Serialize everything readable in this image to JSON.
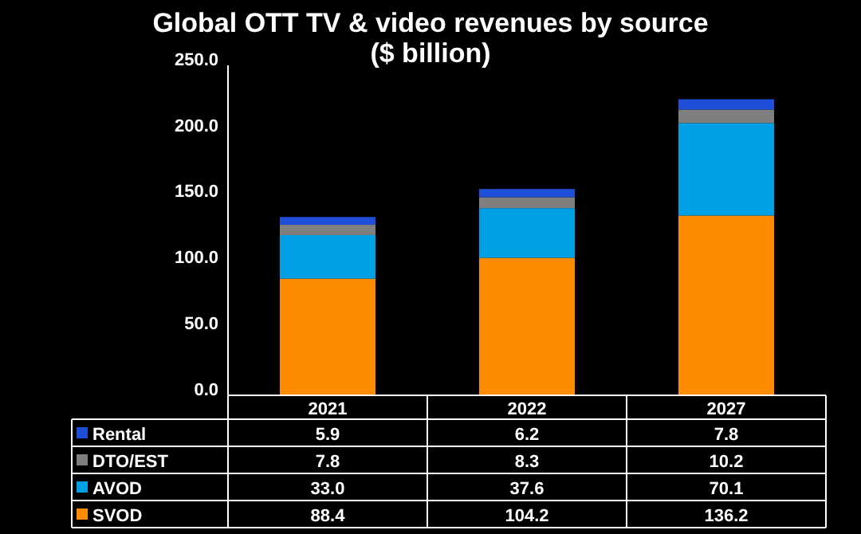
{
  "chart_data": {
    "type": "bar",
    "stacked": true,
    "title": "Global OTT TV & video revenues by source\n($ billion)",
    "categories": [
      "2021",
      "2022",
      "2027"
    ],
    "series": [
      {
        "name": "SVOD",
        "color": "#ff8c00",
        "values": [
          88.4,
          104.2,
          136.2
        ],
        "value_labels": [
          "88.4",
          "104.2",
          "136.2"
        ]
      },
      {
        "name": "AVOD",
        "color": "#00a0e6",
        "values": [
          33.0,
          37.6,
          70.1
        ],
        "value_labels": [
          "33.0",
          "37.6",
          "70.1"
        ]
      },
      {
        "name": "DTO/EST",
        "color": "#7f7f7f",
        "values": [
          7.8,
          8.3,
          10.2
        ],
        "value_labels": [
          "7.8",
          "8.3",
          "10.2"
        ]
      },
      {
        "name": "Rental",
        "color": "#1f4fd8",
        "values": [
          5.9,
          6.2,
          7.8
        ],
        "value_labels": [
          "5.9",
          "6.2",
          "7.8"
        ]
      }
    ],
    "ylim": [
      0,
      250
    ],
    "yticks": [
      {
        "value": 0,
        "label": "0.0"
      },
      {
        "value": 50,
        "label": "50.0"
      },
      {
        "value": 100,
        "label": "100.0"
      },
      {
        "value": 150,
        "label": "150.0"
      },
      {
        "value": 200,
        "label": "200.0"
      },
      {
        "value": 250,
        "label": "250.0"
      }
    ],
    "legend": "bottom",
    "grid": false
  }
}
